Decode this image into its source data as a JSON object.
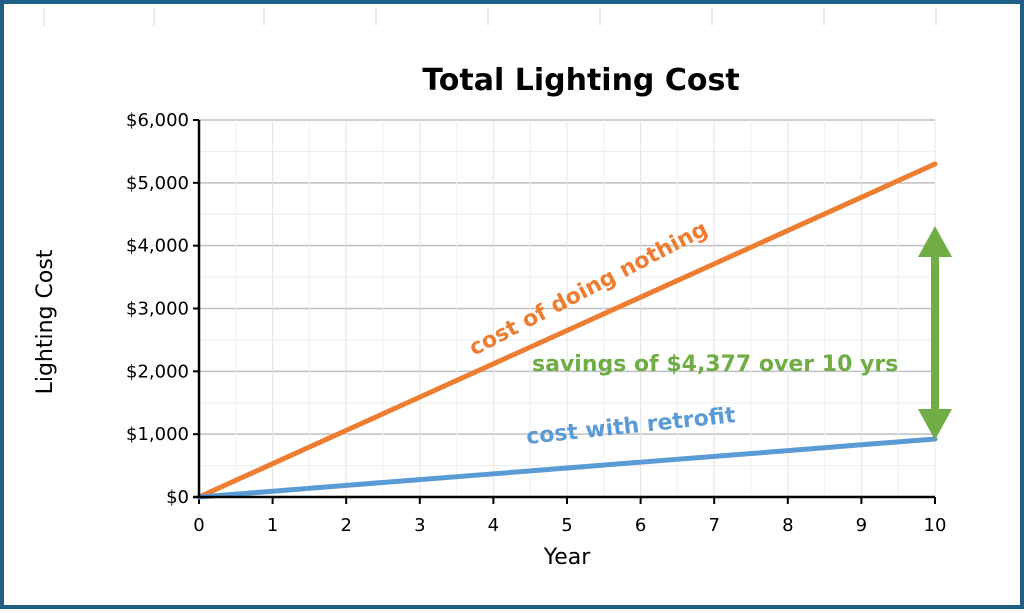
{
  "chart_data": {
    "type": "line",
    "title": "Total Lighting Cost",
    "xlabel": "Year",
    "ylabel": "Lighting Cost",
    "x": [
      0,
      1,
      2,
      3,
      4,
      5,
      6,
      7,
      8,
      9,
      10
    ],
    "xlim": [
      0,
      10
    ],
    "ylim": [
      0,
      6000
    ],
    "y_ticks": [
      0,
      1000,
      2000,
      3000,
      4000,
      5000,
      6000
    ],
    "y_tick_labels": [
      "$0",
      "$1,000",
      "$2,000",
      "$3,000",
      "$4,000",
      "$5,000",
      "$6,000"
    ],
    "x_tick_labels": [
      "0",
      "1",
      "2",
      "3",
      "4",
      "5",
      "6",
      "7",
      "8",
      "9",
      "10"
    ],
    "grid": true,
    "series": [
      {
        "name": "cost of doing nothing",
        "color": "#ed7d31",
        "values": [
          0,
          530,
          1060,
          1590,
          2120,
          2650,
          3180,
          3710,
          4240,
          4770,
          5300
        ]
      },
      {
        "name": "cost with retrofit",
        "color": "#5b9bd5",
        "values": [
          0,
          92,
          185,
          277,
          369,
          462,
          554,
          646,
          738,
          831,
          923
        ]
      }
    ],
    "annotations": [
      {
        "text": "cost of doing nothing",
        "color": "#ed7d31"
      },
      {
        "text": "cost with retrofit",
        "color": "#5b9bd5"
      },
      {
        "text": "savings of $4,377 over 10 yrs",
        "color": "#70ad47"
      }
    ]
  }
}
